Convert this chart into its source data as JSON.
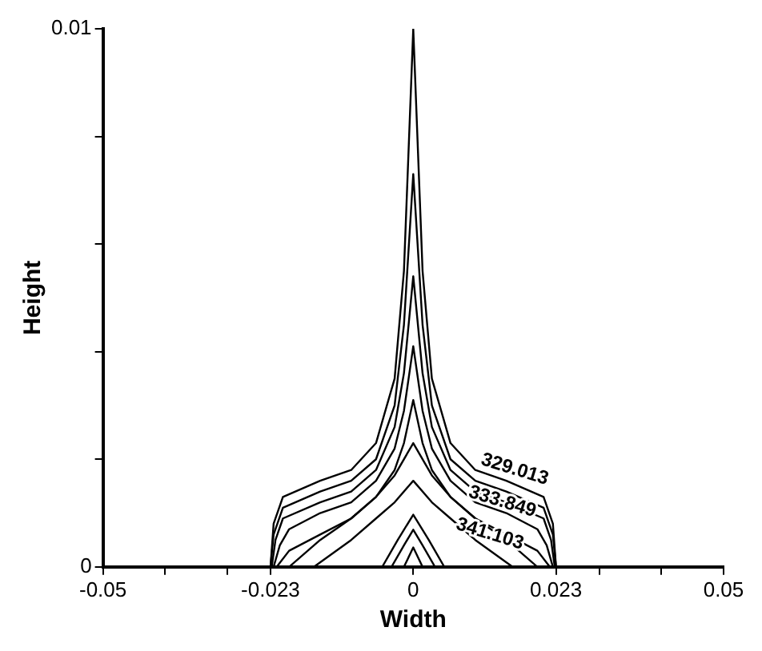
{
  "chart_data": {
    "type": "line",
    "xlabel": "Width",
    "ylabel": "Height",
    "xlim": [
      -0.05,
      0.05
    ],
    "ylim": [
      0,
      0.01
    ],
    "xticks": [
      -0.05,
      {
        "value": -0.04,
        "label": null
      },
      {
        "value": -0.03,
        "label": null
      },
      -0.023,
      0,
      0.023,
      {
        "value": 0.03,
        "label": null
      },
      {
        "value": 0.04,
        "label": null
      },
      0.05
    ],
    "yticks": [
      0,
      {
        "value": 0.002,
        "label": null
      },
      {
        "value": 0.004,
        "label": null
      },
      {
        "value": 0.006,
        "label": null
      },
      {
        "value": 0.008,
        "label": null
      },
      0.01
    ],
    "grid": false,
    "legend": false,
    "marker": "none",
    "line_style": "solid",
    "series": [
      {
        "color": "#000000",
        "x": [
          -0.023,
          -0.0225,
          -0.021,
          -0.015,
          -0.01,
          -0.006,
          -0.003,
          -0.0015,
          0,
          0.0015,
          0.003,
          0.006,
          0.01,
          0.015,
          0.021,
          0.0225,
          0.023
        ],
        "values": [
          0,
          0.0008,
          0.0013,
          0.0016,
          0.0018,
          0.0023,
          0.0035,
          0.0055,
          0.01,
          0.0055,
          0.0035,
          0.0023,
          0.0018,
          0.0016,
          0.0013,
          0.0008,
          0
        ]
      },
      {
        "color": "#000000",
        "x": [
          -0.023,
          -0.0225,
          -0.021,
          -0.015,
          -0.01,
          -0.006,
          -0.003,
          -0.0015,
          0,
          0.0015,
          0.003,
          0.006,
          0.01,
          0.015,
          0.021,
          0.0225,
          0.023
        ],
        "values": [
          0,
          0.0006,
          0.0011,
          0.0014,
          0.0016,
          0.002,
          0.003,
          0.0045,
          0.0073,
          0.0045,
          0.003,
          0.002,
          0.0016,
          0.0014,
          0.0011,
          0.0006,
          0
        ]
      },
      {
        "color": "#000000",
        "x": [
          -0.0228,
          -0.0222,
          -0.021,
          -0.015,
          -0.01,
          -0.006,
          -0.003,
          -0.0015,
          0,
          0.0015,
          0.003,
          0.006,
          0.01,
          0.015,
          0.021,
          0.0222,
          0.0228
        ],
        "values": [
          0,
          0.0005,
          0.0009,
          0.0012,
          0.0014,
          0.0018,
          0.0026,
          0.0036,
          0.0054,
          0.0036,
          0.0026,
          0.0018,
          0.0014,
          0.0012,
          0.0009,
          0.0005,
          0
        ]
      },
      {
        "color": "#000000",
        "x": [
          -0.0225,
          -0.0215,
          -0.02,
          -0.015,
          -0.01,
          -0.006,
          -0.003,
          -0.0015,
          0,
          0.0015,
          0.003,
          0.006,
          0.01,
          0.015,
          0.02,
          0.0215,
          0.0225
        ],
        "values": [
          0,
          0.0004,
          0.0007,
          0.001,
          0.0012,
          0.0016,
          0.0022,
          0.0029,
          0.0041,
          0.0029,
          0.0022,
          0.0016,
          0.0012,
          0.001,
          0.0007,
          0.0004,
          0
        ]
      },
      {
        "color": "#000000",
        "x": [
          -0.022,
          -0.02,
          -0.015,
          -0.01,
          -0.006,
          -0.003,
          -0.0015,
          0,
          0.0015,
          0.003,
          0.006,
          0.01,
          0.015,
          0.02,
          0.022
        ],
        "values": [
          0,
          0.0003,
          0.0006,
          0.0009,
          0.0013,
          0.0018,
          0.0023,
          0.0031,
          0.0023,
          0.0018,
          0.0013,
          0.0009,
          0.0006,
          0.0003,
          0
        ]
      },
      {
        "color": "#000000",
        "x": [
          -0.02,
          -0.015,
          -0.01,
          -0.006,
          -0.003,
          0,
          0.003,
          0.006,
          0.01,
          0.015,
          0.02
        ],
        "values": [
          0,
          0.0005,
          0.0009,
          0.0013,
          0.0017,
          0.0023,
          0.0017,
          0.0013,
          0.0009,
          0.0005,
          0
        ]
      },
      {
        "color": "#000000",
        "x": [
          -0.016,
          -0.01,
          -0.006,
          -0.003,
          0,
          0.003,
          0.006,
          0.01,
          0.016
        ],
        "values": [
          0,
          0.0005,
          0.0009,
          0.0012,
          0.0016,
          0.0012,
          0.0009,
          0.0005,
          0
        ]
      },
      {
        "color": "#000000",
        "x": [
          -0.005,
          -0.0025,
          0,
          0.0025,
          0.005
        ],
        "values": [
          0,
          0.0005,
          0.00097,
          0.0005,
          0
        ]
      },
      {
        "color": "#000000",
        "x": [
          -0.0035,
          -0.0015,
          0,
          0.0015,
          0.0035
        ],
        "values": [
          0,
          0.0004,
          0.00069,
          0.0004,
          0
        ]
      },
      {
        "color": "#000000",
        "x": [
          -0.0015,
          0,
          0.0015
        ],
        "values": [
          0,
          0.00036,
          0
        ]
      }
    ],
    "annotations": [
      "329.013",
      "333.849",
      "341.103"
    ]
  }
}
